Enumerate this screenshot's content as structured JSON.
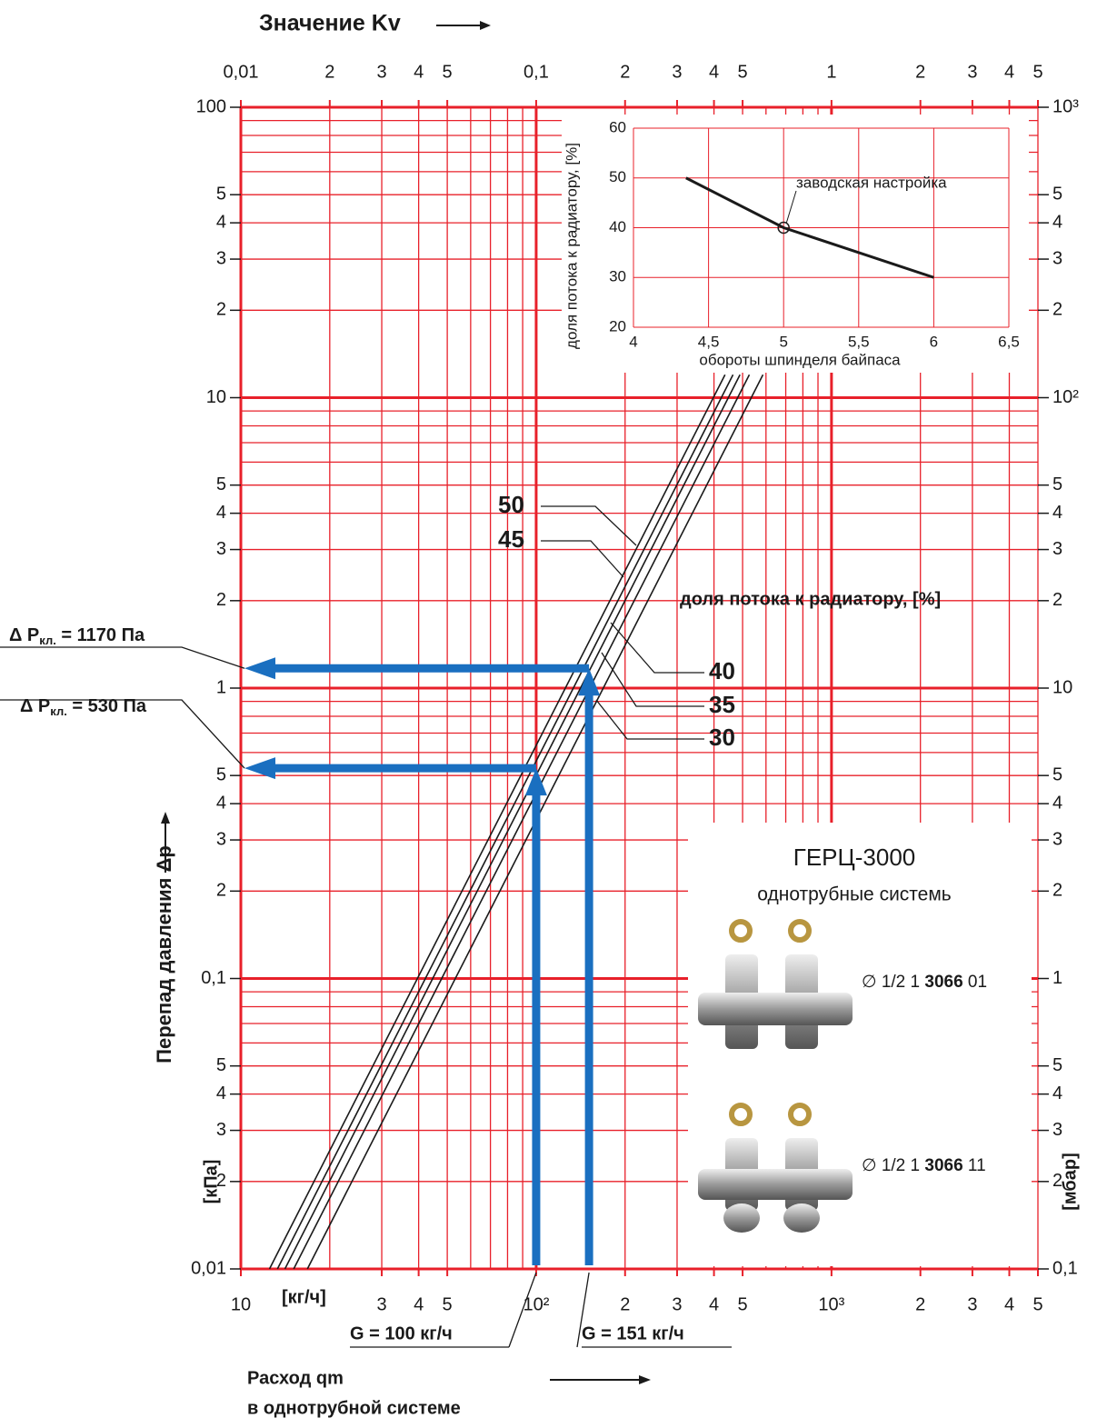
{
  "chart_data": {
    "type": "line",
    "title": "Значение Kv",
    "y_label": "Перепад давления Δp",
    "y_unit": "[кПа]",
    "y2_unit": "[мбар]",
    "x_unit": "[кг/ч]",
    "x_label": [
      "Расход qm",
      "в однотрубной системе"
    ],
    "legend_title": "доля потока к радиатору, [%]",
    "log_x": true,
    "log_y": true,
    "grid": true,
    "grid_color": "#e8202a",
    "xlim": [
      10,
      5000
    ],
    "ylim": [
      0.01,
      100
    ],
    "x2lim": [
      0.01,
      5
    ],
    "y2lim": [
      0.1,
      1000
    ],
    "xticks": [
      10,
      {
        "value": 30,
        "label": "3"
      },
      {
        "value": 40,
        "label": "4"
      },
      {
        "value": 50,
        "label": "5"
      },
      {
        "value": 100,
        "label": "10²"
      },
      {
        "value": 200,
        "label": "2"
      },
      {
        "value": 300,
        "label": "3"
      },
      {
        "value": 400,
        "label": "4"
      },
      {
        "value": 500,
        "label": "5"
      },
      {
        "value": 1000,
        "label": "10³"
      },
      {
        "value": 2000,
        "label": "2"
      },
      {
        "value": 3000,
        "label": "3"
      },
      {
        "value": 4000,
        "label": "4"
      },
      {
        "value": 5000,
        "label": "5"
      }
    ],
    "x2ticks": [
      {
        "value": 0.01,
        "label": "0,01"
      },
      {
        "value": 0.02,
        "label": "2"
      },
      {
        "value": 0.03,
        "label": "3"
      },
      {
        "value": 0.04,
        "label": "4"
      },
      {
        "value": 0.05,
        "label": "5"
      },
      {
        "value": 0.1,
        "label": "0,1"
      },
      {
        "value": 0.2,
        "label": "2"
      },
      {
        "value": 0.3,
        "label": "3"
      },
      {
        "value": 0.4,
        "label": "4"
      },
      {
        "value": 0.5,
        "label": "5"
      },
      1,
      2,
      3,
      4,
      5
    ],
    "yticks": [
      100,
      {
        "value": 50,
        "label": "5"
      },
      {
        "value": 40,
        "label": "4"
      },
      {
        "value": 30,
        "label": "3"
      },
      {
        "value": 20,
        "label": "2"
      },
      10,
      5,
      4,
      3,
      2,
      1,
      {
        "value": 0.5,
        "label": "5"
      },
      {
        "value": 0.4,
        "label": "4"
      },
      {
        "value": 0.3,
        "label": "3"
      },
      {
        "value": 0.2,
        "label": "2"
      },
      {
        "value": 0.1,
        "label": "0,1"
      },
      {
        "value": 0.05,
        "label": "5"
      },
      {
        "value": 0.04,
        "label": "4"
      },
      {
        "value": 0.03,
        "label": "3"
      },
      {
        "value": 0.02,
        "label": "2"
      },
      {
        "value": 0.01,
        "label": "0,01"
      }
    ],
    "y2ticks": [
      {
        "value": 1000,
        "label": "10³"
      },
      {
        "value": 500,
        "label": "5"
      },
      {
        "value": 400,
        "label": "4"
      },
      {
        "value": 300,
        "label": "3"
      },
      {
        "value": 200,
        "label": "2"
      },
      {
        "value": 100,
        "label": "10²"
      },
      {
        "value": 50,
        "label": "5"
      },
      {
        "value": 40,
        "label": "4"
      },
      {
        "value": 30,
        "label": "3"
      },
      {
        "value": 20,
        "label": "2"
      },
      10,
      5,
      4,
      3,
      2,
      1,
      {
        "value": 0.5,
        "label": "5"
      },
      {
        "value": 0.4,
        "label": "4"
      },
      {
        "value": 0.3,
        "label": "3"
      },
      {
        "value": 0.2,
        "label": "2"
      },
      {
        "value": 0.1,
        "label": "0,1"
      }
    ],
    "xgrid": [
      10,
      20,
      30,
      40,
      50,
      60,
      70,
      80,
      90,
      100,
      200,
      300,
      400,
      500,
      600,
      700,
      800,
      900,
      1000,
      2000,
      3000,
      4000,
      5000
    ],
    "ygrid": [
      0.01,
      0.02,
      0.03,
      0.04,
      0.05,
      0.06,
      0.07,
      0.08,
      0.09,
      0.1,
      0.2,
      0.3,
      0.4,
      0.5,
      0.6,
      0.7,
      0.8,
      0.9,
      1,
      2,
      3,
      4,
      5,
      6,
      7,
      8,
      9,
      10,
      20,
      30,
      40,
      50,
      60,
      70,
      80,
      90,
      100
    ],
    "series": [
      {
        "name": "50",
        "color": "#1a1a1a",
        "x": [
          12.5,
          436
        ],
        "values": [
          0.01,
          12
        ]
      },
      {
        "name": "45",
        "color": "#1a1a1a",
        "x": [
          13.3,
          464
        ],
        "values": [
          0.01,
          12
        ]
      },
      {
        "name": "40",
        "color": "#1a1a1a",
        "x": [
          14.1,
          490
        ],
        "values": [
          0.01,
          12
        ]
      },
      {
        "name": "35",
        "color": "#1a1a1a",
        "x": [
          15.1,
          527
        ],
        "values": [
          0.01,
          12
        ]
      },
      {
        "name": "30",
        "color": "#1a1a1a",
        "x": [
          16.8,
          586
        ],
        "values": [
          0.01,
          12
        ]
      }
    ],
    "annotations": [
      {
        "text": "Δ P",
        "sub": "кл.",
        "rest": " = 1170 Па",
        "q": 151,
        "dp": 1.17,
        "flow_label": "G = 151  кг/ч",
        "color": "#1a6fc0"
      },
      {
        "text": "Δ P",
        "sub": "кл.",
        "rest": " = 530 Па",
        "q": 100,
        "dp": 0.53,
        "flow_label": "G = 100 кг/ч",
        "color": "#1a6fc0"
      }
    ],
    "inset": {
      "type": "line",
      "x_label": "обороты шпинделя байпаса",
      "y_label": "доля потока к радиатору, [%]",
      "xlim": [
        4,
        6.5
      ],
      "ylim": [
        20,
        60
      ],
      "xticks": [
        4,
        {
          "value": 4.5,
          "label": "4,5"
        },
        5,
        {
          "value": 5.5,
          "label": "5,5"
        },
        6,
        {
          "value": 6.5,
          "label": "6,5"
        }
      ],
      "yticks": [
        20,
        30,
        40,
        50,
        60
      ],
      "x": [
        4.35,
        5,
        6
      ],
      "values": [
        50,
        40,
        30
      ],
      "color": "#1a1a1a",
      "annotation": {
        "text": "заводская настройка",
        "x": 5,
        "y": 40
      }
    },
    "product": {
      "title": "ГЕРЦ-3000",
      "subtitle": "однотрубные системь",
      "items": [
        {
          "prefix": "∅ 1/2  1 ",
          "code": "3066",
          "suffix": " 01"
        },
        {
          "prefix": "∅ 1/2  1 ",
          "code": "3066",
          "suffix": " 11"
        }
      ]
    }
  }
}
